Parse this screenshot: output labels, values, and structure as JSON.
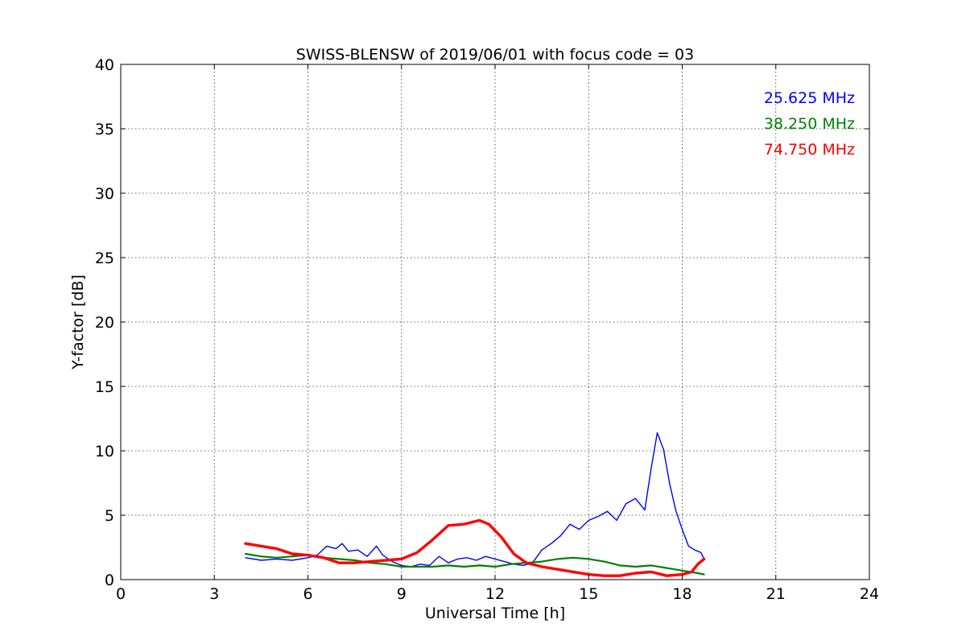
{
  "chart_data": {
    "type": "line",
    "title": "SWISS-BLENSW of 2019/06/01 with focus code = 03",
    "xlabel": "Universal Time [h]",
    "ylabel": "Y-factor [dB]",
    "xlim": [
      0,
      24
    ],
    "ylim": [
      0,
      40
    ],
    "xticks": [
      0,
      3,
      6,
      9,
      12,
      15,
      18,
      21,
      24
    ],
    "yticks": [
      0,
      5,
      10,
      15,
      20,
      25,
      30,
      35,
      40
    ],
    "grid": true,
    "legend_position": "top-right",
    "series": [
      {
        "name": "25.625 MHz",
        "color": "#0000ff",
        "x": [
          4.0,
          4.5,
          5.0,
          5.5,
          6.0,
          6.3,
          6.6,
          6.9,
          7.1,
          7.3,
          7.6,
          7.9,
          8.2,
          8.4,
          8.7,
          9.0,
          9.3,
          9.6,
          9.9,
          10.2,
          10.5,
          10.8,
          11.1,
          11.4,
          11.7,
          12.0,
          12.3,
          12.6,
          12.9,
          13.2,
          13.5,
          13.8,
          14.1,
          14.4,
          14.7,
          15.0,
          15.3,
          15.6,
          15.9,
          16.2,
          16.5,
          16.8,
          17.0,
          17.2,
          17.4,
          17.6,
          17.8,
          18.0,
          18.2,
          18.4,
          18.6,
          18.7
        ],
        "y": [
          1.7,
          1.5,
          1.6,
          1.5,
          1.7,
          1.9,
          2.6,
          2.4,
          2.8,
          2.2,
          2.3,
          1.8,
          2.6,
          1.9,
          1.4,
          1.1,
          1.0,
          1.2,
          1.1,
          1.8,
          1.3,
          1.6,
          1.7,
          1.5,
          1.8,
          1.6,
          1.4,
          1.2,
          1.1,
          1.3,
          2.3,
          2.8,
          3.4,
          4.3,
          3.9,
          4.6,
          4.9,
          5.3,
          4.6,
          5.9,
          6.3,
          5.4,
          8.6,
          11.4,
          10.1,
          7.4,
          5.3,
          3.9,
          2.6,
          2.3,
          2.1,
          1.6
        ]
      },
      {
        "name": "38.250 MHz",
        "color": "#008000",
        "x": [
          4.0,
          4.5,
          5.0,
          5.5,
          6.0,
          6.5,
          7.0,
          7.5,
          8.0,
          8.5,
          9.0,
          9.5,
          10.0,
          10.5,
          11.0,
          11.5,
          12.0,
          12.5,
          13.0,
          13.5,
          14.0,
          14.5,
          15.0,
          15.5,
          16.0,
          16.5,
          17.0,
          17.5,
          18.0,
          18.5,
          18.7
        ],
        "y": [
          2.0,
          1.8,
          1.7,
          1.8,
          1.9,
          1.7,
          1.6,
          1.5,
          1.3,
          1.2,
          1.0,
          1.0,
          1.0,
          1.1,
          1.0,
          1.1,
          1.0,
          1.2,
          1.3,
          1.4,
          1.6,
          1.7,
          1.6,
          1.4,
          1.1,
          1.0,
          1.1,
          0.9,
          0.7,
          0.5,
          0.4
        ]
      },
      {
        "name": "74.750 MHz",
        "color": "#ff0000",
        "x": [
          4.0,
          4.5,
          5.0,
          5.5,
          6.0,
          6.5,
          7.0,
          7.5,
          8.0,
          8.5,
          9.0,
          9.5,
          10.0,
          10.5,
          11.0,
          11.5,
          11.8,
          12.2,
          12.6,
          13.0,
          13.5,
          14.0,
          14.5,
          15.0,
          15.5,
          16.0,
          16.5,
          17.0,
          17.5,
          18.0,
          18.3,
          18.5,
          18.7
        ],
        "y": [
          2.8,
          2.6,
          2.4,
          2.0,
          1.9,
          1.7,
          1.3,
          1.3,
          1.4,
          1.5,
          1.6,
          2.1,
          3.1,
          4.2,
          4.3,
          4.6,
          4.3,
          3.3,
          2.0,
          1.3,
          1.0,
          0.8,
          0.6,
          0.4,
          0.3,
          0.3,
          0.5,
          0.6,
          0.3,
          0.4,
          0.6,
          1.2,
          1.6
        ]
      }
    ]
  }
}
